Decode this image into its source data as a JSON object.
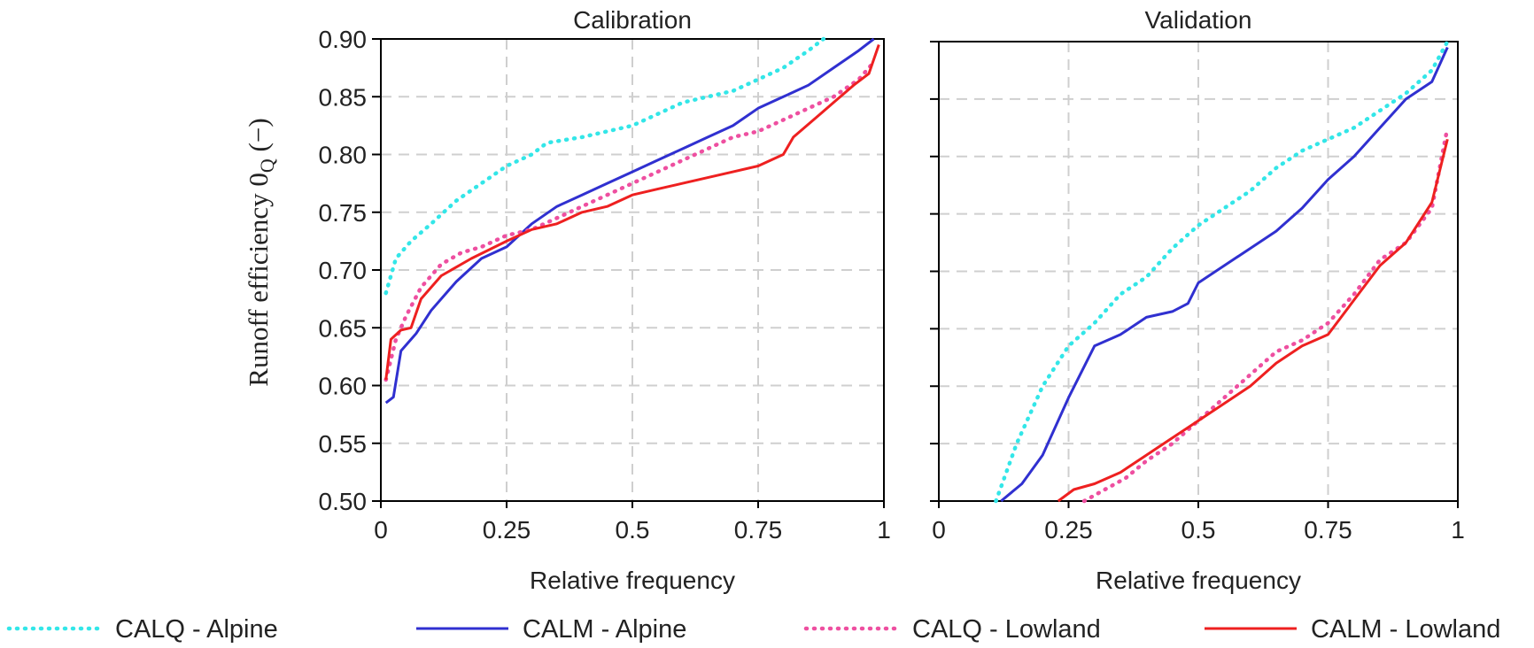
{
  "chart_data": {
    "type": "line",
    "ylabel": "Runoff efficiency 0",
    "ylabel_sub": "Q",
    "ylabel_unit": " (−)",
    "xlabel": "Relative frequency",
    "ylim": [
      0.5,
      0.9
    ],
    "yticks": [
      "0.50",
      "0.55",
      "0.60",
      "0.65",
      "0.70",
      "0.75",
      "0.80",
      "0.85",
      "0.90"
    ],
    "xticks": [
      "0",
      "0.25",
      "0.5",
      "0.75",
      "1"
    ],
    "grid": true,
    "legend_position": "bottom",
    "series_styles": [
      {
        "name": "CALQ - Alpine",
        "color": "#33e6e8",
        "dash": "dotted"
      },
      {
        "name": "CALM - Alpine",
        "color": "#3030d0",
        "dash": "solid"
      },
      {
        "name": "CALQ - Lowland",
        "color": "#ee4fa0",
        "dash": "dotted"
      },
      {
        "name": "CALM - Lowland",
        "color": "#ee2020",
        "dash": "solid"
      }
    ],
    "panels": [
      {
        "title": "Calibration",
        "series": [
          {
            "name": "CALQ - Alpine",
            "x": [
              0.01,
              0.03,
              0.06,
              0.1,
              0.15,
              0.2,
              0.25,
              0.3,
              0.33,
              0.4,
              0.5,
              0.6,
              0.7,
              0.75,
              0.8,
              0.85,
              0.88
            ],
            "y": [
              0.68,
              0.71,
              0.725,
              0.74,
              0.76,
              0.775,
              0.79,
              0.8,
              0.81,
              0.815,
              0.825,
              0.845,
              0.855,
              0.865,
              0.875,
              0.89,
              0.9
            ]
          },
          {
            "name": "CALM - Alpine",
            "x": [
              0.01,
              0.025,
              0.04,
              0.07,
              0.1,
              0.15,
              0.2,
              0.25,
              0.3,
              0.35,
              0.4,
              0.45,
              0.5,
              0.55,
              0.6,
              0.65,
              0.7,
              0.75,
              0.8,
              0.85,
              0.9,
              0.95,
              0.98
            ],
            "y": [
              0.585,
              0.59,
              0.63,
              0.645,
              0.665,
              0.69,
              0.71,
              0.72,
              0.74,
              0.755,
              0.765,
              0.775,
              0.785,
              0.795,
              0.805,
              0.815,
              0.825,
              0.84,
              0.85,
              0.86,
              0.875,
              0.89,
              0.9
            ]
          },
          {
            "name": "CALQ - Lowland",
            "x": [
              0.01,
              0.03,
              0.05,
              0.08,
              0.12,
              0.16,
              0.2,
              0.25,
              0.3,
              0.35,
              0.4,
              0.45,
              0.5,
              0.55,
              0.6,
              0.65,
              0.7,
              0.75,
              0.8,
              0.85,
              0.9,
              0.95,
              0.98
            ],
            "y": [
              0.605,
              0.64,
              0.66,
              0.685,
              0.705,
              0.715,
              0.72,
              0.73,
              0.735,
              0.745,
              0.755,
              0.765,
              0.775,
              0.785,
              0.795,
              0.805,
              0.815,
              0.82,
              0.83,
              0.84,
              0.85,
              0.865,
              0.88
            ]
          },
          {
            "name": "CALM - Lowland",
            "x": [
              0.01,
              0.02,
              0.04,
              0.06,
              0.08,
              0.12,
              0.18,
              0.25,
              0.3,
              0.35,
              0.4,
              0.45,
              0.5,
              0.55,
              0.6,
              0.65,
              0.7,
              0.75,
              0.8,
              0.82,
              0.86,
              0.9,
              0.94,
              0.97,
              0.99
            ],
            "y": [
              0.605,
              0.64,
              0.648,
              0.65,
              0.675,
              0.695,
              0.71,
              0.725,
              0.735,
              0.74,
              0.75,
              0.755,
              0.765,
              0.77,
              0.775,
              0.78,
              0.785,
              0.79,
              0.8,
              0.815,
              0.83,
              0.845,
              0.86,
              0.87,
              0.895
            ]
          }
        ]
      },
      {
        "title": "Validation",
        "series": [
          {
            "name": "CALQ - Alpine",
            "x": [
              0.11,
              0.15,
              0.2,
              0.25,
              0.3,
              0.35,
              0.4,
              0.45,
              0.5,
              0.55,
              0.6,
              0.65,
              0.7,
              0.75,
              0.8,
              0.85,
              0.9,
              0.95,
              0.98
            ],
            "y": [
              0.5,
              0.55,
              0.6,
              0.635,
              0.655,
              0.68,
              0.695,
              0.72,
              0.74,
              0.755,
              0.77,
              0.79,
              0.805,
              0.815,
              0.825,
              0.84,
              0.855,
              0.875,
              0.9
            ]
          },
          {
            "name": "CALM - Alpine",
            "x": [
              0.12,
              0.16,
              0.2,
              0.25,
              0.3,
              0.35,
              0.4,
              0.45,
              0.48,
              0.5,
              0.55,
              0.6,
              0.65,
              0.7,
              0.75,
              0.8,
              0.85,
              0.9,
              0.95,
              0.98
            ],
            "y": [
              0.5,
              0.515,
              0.54,
              0.59,
              0.635,
              0.645,
              0.66,
              0.665,
              0.672,
              0.69,
              0.705,
              0.72,
              0.735,
              0.755,
              0.78,
              0.8,
              0.825,
              0.85,
              0.865,
              0.895
            ]
          },
          {
            "name": "CALQ - Lowland",
            "x": [
              0.28,
              0.32,
              0.36,
              0.4,
              0.45,
              0.5,
              0.55,
              0.6,
              0.65,
              0.7,
              0.75,
              0.8,
              0.85,
              0.9,
              0.95,
              0.98
            ],
            "y": [
              0.5,
              0.51,
              0.52,
              0.535,
              0.55,
              0.57,
              0.59,
              0.61,
              0.63,
              0.64,
              0.655,
              0.68,
              0.71,
              0.725,
              0.755,
              0.825
            ]
          },
          {
            "name": "CALM - Lowland",
            "x": [
              0.23,
              0.26,
              0.3,
              0.35,
              0.4,
              0.45,
              0.5,
              0.55,
              0.6,
              0.65,
              0.7,
              0.75,
              0.8,
              0.85,
              0.9,
              0.95,
              0.98
            ],
            "y": [
              0.5,
              0.51,
              0.515,
              0.525,
              0.54,
              0.555,
              0.57,
              0.585,
              0.6,
              0.62,
              0.635,
              0.645,
              0.675,
              0.705,
              0.725,
              0.76,
              0.815
            ]
          }
        ]
      }
    ]
  }
}
